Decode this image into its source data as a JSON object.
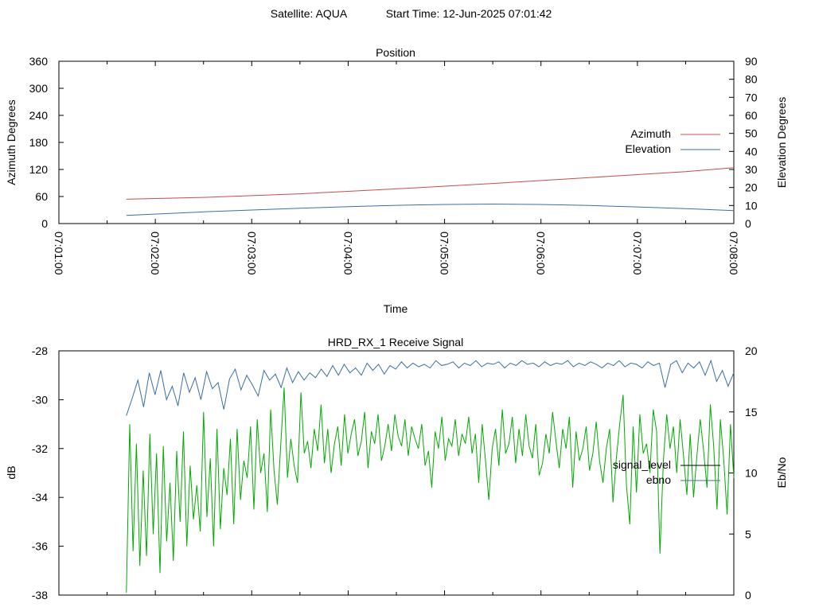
{
  "header": {
    "satellite_label": "Satellite: AQUA",
    "start_time_label": "Start Time: 12-Jun-2025 07:01:42"
  },
  "chart_data": [
    {
      "id": "position",
      "type": "line",
      "title": "Position",
      "xlabel": "Time",
      "ylabel": "Azimuth Degrees",
      "y2label": "Elevation Degrees",
      "xlim": [
        "07:01:00",
        "07:08:00"
      ],
      "xticks": [
        "07:01:00",
        "07:02:00",
        "07:03:00",
        "07:04:00",
        "07:05:00",
        "07:06:00",
        "07:07:00",
        "07:08:00"
      ],
      "ylim": [
        0,
        360
      ],
      "yticks": [
        0,
        60,
        120,
        180,
        240,
        300,
        360
      ],
      "y2lim": [
        0,
        90
      ],
      "y2ticks": [
        0,
        10,
        20,
        30,
        40,
        50,
        60,
        70,
        80,
        90
      ],
      "legend_position": "right",
      "series": [
        {
          "name": "Azimuth",
          "axis": "y",
          "color": "#c0504d",
          "x": [
            "07:01:42",
            "07:02:30",
            "07:03:30",
            "07:04:30",
            "07:05:30",
            "07:06:30",
            "07:07:30",
            "07:08:00"
          ],
          "values": [
            54,
            58,
            66,
            77,
            89,
            102,
            115,
            124
          ]
        },
        {
          "name": "Elevation",
          "axis": "y2",
          "color": "#3a6ea5",
          "x": [
            "07:01:42",
            "07:02:30",
            "07:03:30",
            "07:04:00",
            "07:04:30",
            "07:05:00",
            "07:05:30",
            "07:06:00",
            "07:06:30",
            "07:07:00",
            "07:07:30",
            "07:08:00"
          ],
          "values": [
            4.5,
            6.5,
            8.5,
            9.4,
            10.1,
            10.6,
            10.8,
            10.6,
            10.0,
            9.2,
            8.3,
            7.2
          ]
        }
      ]
    },
    {
      "id": "receive-signal",
      "type": "line",
      "title": "HRD_RX_1 Receive Signal",
      "ylabel": "dB",
      "y2label": "Eb/No",
      "xlim": [
        "07:01:00",
        "07:08:00"
      ],
      "ylim": [
        -38,
        -28
      ],
      "yticks": [
        -38,
        -36,
        -34,
        -32,
        -30,
        -28
      ],
      "y2lim": [
        0,
        20
      ],
      "y2ticks": [
        0,
        5,
        10,
        15,
        20
      ],
      "legend_position": "right",
      "series": [
        {
          "name": "signal_level",
          "axis": "y",
          "color": "#000000",
          "x": [],
          "values": []
        },
        {
          "name": "ebno",
          "axis": "y2",
          "color": "#3a6ea5",
          "x_range": [
            "07:01:42",
            "07:08:00"
          ],
          "values": [
            14.7,
            16.1,
            17.6,
            15.4,
            18.2,
            16.4,
            18.4,
            16.0,
            17.1,
            15.5,
            18.2,
            16.6,
            17.8,
            16.0,
            18.3,
            16.9,
            17.4,
            15.2,
            17.7,
            18.5,
            16.8,
            18.0,
            17.2,
            16.3,
            18.4,
            17.6,
            18.1,
            17.0,
            18.6,
            17.4,
            18.3,
            17.6,
            18.2,
            17.8,
            18.5,
            17.9,
            18.8,
            18.0,
            18.9,
            18.2,
            18.6,
            18.0,
            19.0,
            18.4,
            18.9,
            18.1,
            18.8,
            18.5,
            19.1,
            18.6,
            19.0,
            18.7,
            18.9,
            18.6,
            19.2,
            18.8,
            18.9,
            19.1,
            18.6,
            19.0,
            18.8,
            19.2,
            18.7,
            19.0,
            18.9,
            19.1,
            18.6,
            19.0,
            18.8,
            19.2,
            18.9,
            19.0,
            18.7,
            19.1,
            18.8,
            19.0,
            18.9,
            19.2,
            18.7,
            19.0,
            18.8,
            19.1,
            18.9,
            18.6,
            19.0,
            18.8,
            19.2,
            18.7,
            19.0,
            18.9,
            18.6,
            19.1,
            18.8,
            19.0,
            17.0,
            18.9,
            19.2,
            18.2,
            19.0,
            18.6,
            19.1,
            18.0,
            19.2,
            17.5,
            18.4,
            17.1,
            18.2
          ]
        },
        {
          "name": "",
          "axis": "y",
          "color": "#00aa00",
          "x_range": [
            "07:01:42",
            "07:08:00"
          ],
          "values": [
            -37.9,
            -31.0,
            -36.2,
            -31.8,
            -36.8,
            -32.9,
            -36.4,
            -31.4,
            -35.5,
            -32.2,
            -37.1,
            -31.9,
            -35.8,
            -33.4,
            -36.6,
            -32.1,
            -35.0,
            -31.3,
            -36.0,
            -32.7,
            -34.9,
            -33.5,
            -35.4,
            -30.5,
            -34.8,
            -32.4,
            -36.0,
            -31.2,
            -35.3,
            -32.8,
            -33.9,
            -31.6,
            -35.1,
            -31.2,
            -34.1,
            -32.5,
            -33.2,
            -31.1,
            -34.5,
            -30.8,
            -33.0,
            -32.2,
            -34.6,
            -30.4,
            -32.9,
            -34.3,
            -31.8,
            -29.5,
            -33.2,
            -31.6,
            -32.7,
            -33.4,
            -29.7,
            -32.2,
            -31.7,
            -32.8,
            -31.2,
            -32.1,
            -30.2,
            -32.6,
            -31.2,
            -33.0,
            -31.8,
            -31.1,
            -32.7,
            -30.6,
            -32.2,
            -31.4,
            -30.8,
            -32.3,
            -31.7,
            -30.5,
            -32.8,
            -31.3,
            -31.8,
            -30.6,
            -32.5,
            -31.9,
            -31.0,
            -32.1,
            -30.6,
            -31.5,
            -31.9,
            -30.8,
            -32.3,
            -31.1,
            -31.6,
            -32.0,
            -31.0,
            -32.7,
            -32.1,
            -33.6,
            -31.3,
            -32.0,
            -30.7,
            -32.5,
            -31.6,
            -31.9,
            -30.8,
            -32.3,
            -31.4,
            -31.8,
            -30.7,
            -32.2,
            -31.4,
            -33.4,
            -31.0,
            -32.5,
            -34.1,
            -32.0,
            -31.2,
            -32.7,
            -30.4,
            -32.2,
            -31.8,
            -30.7,
            -32.6,
            -31.2,
            -32.3,
            -30.6,
            -31.9,
            -32.4,
            -31.0,
            -33.1,
            -32.6,
            -31.4,
            -32.2,
            -30.5,
            -31.7,
            -32.8,
            -31.2,
            -32.0,
            -30.7,
            -33.6,
            -31.3,
            -32.5,
            -32.0,
            -31.1,
            -32.9,
            -32.2,
            -30.9,
            -32.5,
            -33.4,
            -32.0,
            -31.2,
            -34.2,
            -32.4,
            -31.0,
            -29.8,
            -33.5,
            -35.1,
            -31.1,
            -33.8,
            -30.6,
            -32.2,
            -31.8,
            -33.0,
            -30.4,
            -31.3,
            -36.3,
            -32.5,
            -30.6,
            -32.0,
            -31.1,
            -33.0,
            -30.8,
            -32.3,
            -33.9,
            -31.4,
            -34.0,
            -32.3,
            -30.8,
            -32.1,
            -33.6,
            -30.2,
            -31.9,
            -34.5,
            -30.8,
            -32.5,
            -34.7,
            -31.0,
            -33.2
          ]
        }
      ]
    }
  ]
}
